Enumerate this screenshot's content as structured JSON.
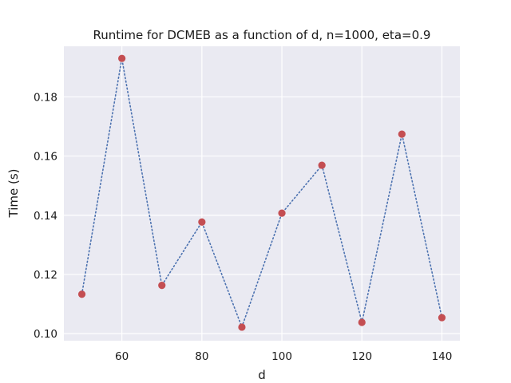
{
  "chart_data": {
    "type": "line",
    "title": "Runtime for DCMEB as a function of d, n=1000, eta=0.9",
    "xlabel": "d",
    "ylabel": "Time (s)",
    "x": [
      50,
      60,
      70,
      80,
      90,
      100,
      110,
      120,
      130,
      140
    ],
    "series": [
      {
        "values": [
          0.1133,
          0.193,
          0.1163,
          0.1377,
          0.1022,
          0.1407,
          0.1569,
          0.1038,
          0.1674,
          0.1054
        ],
        "line_color": "#4c72b0",
        "line_style": "dotted",
        "marker_color": "#c44e52",
        "marker": "circle"
      }
    ],
    "xlim": [
      45.5,
      144.5
    ],
    "ylim": [
      0.0976,
      0.1971
    ],
    "xticks": [
      60,
      80,
      100,
      120,
      140
    ],
    "xtick_labels": [
      "60",
      "80",
      "100",
      "120",
      "140"
    ],
    "yticks": [
      0.1,
      0.12,
      0.14,
      0.16,
      0.18
    ],
    "ytick_labels": [
      "0.10",
      "0.12",
      "0.14",
      "0.16",
      "0.18"
    ],
    "grid": true,
    "background_color": "#eaeaf2",
    "grid_color": "#ffffff"
  }
}
